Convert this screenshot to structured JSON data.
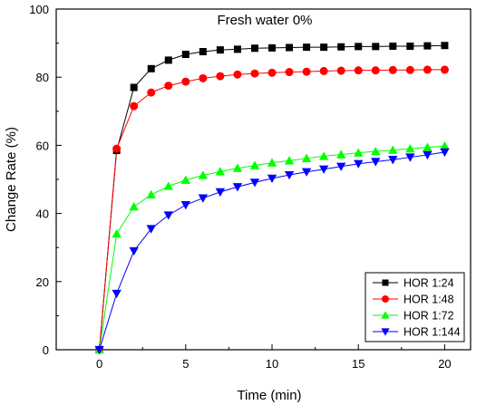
{
  "chart_data": {
    "type": "line",
    "title": "Fresh water 0%",
    "xlabel": "Time (min)",
    "ylabel": "Change Rate (%)",
    "xlim": [
      -2.5,
      21.5
    ],
    "ylim": [
      0,
      100
    ],
    "xticks": [
      0,
      5,
      10,
      15,
      20
    ],
    "yticks": [
      0,
      20,
      40,
      60,
      80,
      100
    ],
    "grid": false,
    "legend_position": "bottom-right",
    "x": [
      0,
      1,
      2,
      3,
      4,
      5,
      6,
      7,
      8,
      9,
      10,
      11,
      12,
      13,
      14,
      15,
      16,
      17,
      18,
      19,
      20
    ],
    "series": [
      {
        "name": "HOR 1:24",
        "color": "#000000",
        "marker": "square",
        "values": [
          0,
          58.5,
          77,
          82.5,
          85,
          86.7,
          87.5,
          88,
          88.2,
          88.5,
          88.6,
          88.7,
          88.8,
          88.8,
          88.9,
          89,
          89,
          89.1,
          89.1,
          89.2,
          89.3
        ]
      },
      {
        "name": "HOR 1:48",
        "color": "#ff0000",
        "marker": "circle",
        "values": [
          0,
          59,
          71.5,
          75.5,
          77.5,
          78.7,
          79.7,
          80.3,
          80.8,
          81.1,
          81.3,
          81.5,
          81.6,
          81.8,
          81.9,
          82,
          82,
          82.1,
          82.1,
          82.2,
          82.2
        ]
      },
      {
        "name": "HOR 1:72",
        "color": "#00ff00",
        "marker": "triangle-up",
        "values": [
          0,
          34,
          42,
          45.5,
          48,
          49.8,
          51.2,
          52.3,
          53.3,
          54.1,
          54.9,
          55.5,
          56.2,
          56.8,
          57.3,
          57.8,
          58.2,
          58.6,
          59,
          59.4,
          59.8
        ]
      },
      {
        "name": "HOR 1:144",
        "color": "#0000ff",
        "marker": "triangle-down",
        "values": [
          0,
          16.5,
          29,
          35.5,
          39.5,
          42.5,
          44.5,
          46.3,
          47.8,
          49.1,
          50.3,
          51.3,
          52.2,
          53,
          53.8,
          54.6,
          55.2,
          55.8,
          56.5,
          57.2,
          58
        ]
      }
    ]
  }
}
